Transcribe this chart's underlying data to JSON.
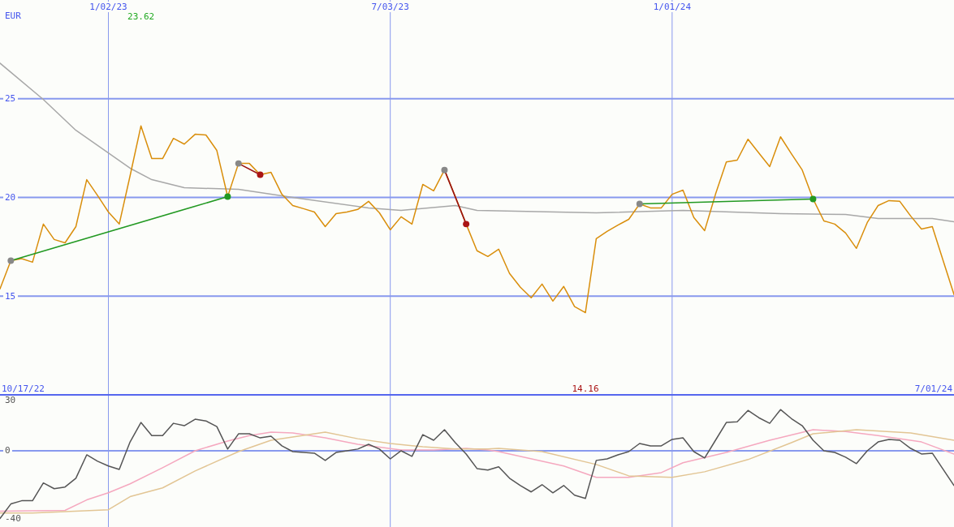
{
  "chart_data": [
    {
      "type": "line",
      "ylabel": "EUR",
      "xlim": [
        "2022-10-24",
        "2024-07-01"
      ],
      "xticks": [
        {
          "value": "2023-01-02",
          "label": "1/02/23"
        },
        {
          "value": "2023-07-03",
          "label": "7/03/23"
        },
        {
          "value": "2024-01-01",
          "label": "1/01/24"
        }
      ],
      "ylim": [
        10,
        30
      ],
      "yticks": [
        15,
        20,
        25
      ],
      "grid": true,
      "x": [
        "2022-10-24",
        "2022-10-31",
        "2022-11-07",
        "2022-11-14",
        "2022-11-21",
        "2022-11-28",
        "2022-12-05",
        "2022-12-12",
        "2022-12-19",
        "2022-12-26",
        "2023-01-02",
        "2023-01-09",
        "2023-01-16",
        "2023-01-23",
        "2023-01-30",
        "2023-02-06",
        "2023-02-13",
        "2023-02-20",
        "2023-02-27",
        "2023-03-06",
        "2023-03-13",
        "2023-03-20",
        "2023-03-27",
        "2023-04-03",
        "2023-04-10",
        "2023-04-17",
        "2023-04-24",
        "2023-05-01",
        "2023-05-08",
        "2023-05-15",
        "2023-05-22",
        "2023-05-29",
        "2023-06-05",
        "2023-06-12",
        "2023-06-19",
        "2023-06-26",
        "2023-07-03",
        "2023-07-10",
        "2023-07-17",
        "2023-07-24",
        "2023-07-31",
        "2023-08-07",
        "2023-08-14",
        "2023-08-21",
        "2023-08-28",
        "2023-09-04",
        "2023-09-11",
        "2023-09-18",
        "2023-09-25",
        "2023-10-02",
        "2023-10-09",
        "2023-10-16",
        "2023-10-23",
        "2023-10-30",
        "2023-11-06",
        "2023-11-13",
        "2023-11-20",
        "2023-11-27",
        "2023-12-04",
        "2023-12-11",
        "2023-12-18",
        "2023-12-25",
        "2024-01-01",
        "2024-01-08",
        "2024-01-15",
        "2024-01-22",
        "2024-01-29",
        "2024-02-05",
        "2024-02-12",
        "2024-02-19",
        "2024-02-26",
        "2024-03-04",
        "2024-03-11",
        "2024-03-18",
        "2024-03-25",
        "2024-04-01",
        "2024-04-08",
        "2024-04-15",
        "2024-04-22",
        "2024-04-29",
        "2024-05-06",
        "2024-05-13",
        "2024-05-20",
        "2024-05-27",
        "2024-06-03",
        "2024-06-10",
        "2024-06-17",
        "2024-06-24",
        "2024-07-01"
      ],
      "series": [
        {
          "color": "#a8a8a8",
          "x": [
            "2022-10-24",
            "2022-11-21",
            "2022-12-12",
            "2023-01-16",
            "2023-01-30",
            "2023-02-20",
            "2023-03-27",
            "2023-05-01",
            "2023-06-19",
            "2023-07-10",
            "2023-08-14",
            "2023-08-28",
            "2023-11-13",
            "2024-01-08",
            "2024-03-11",
            "2024-04-22",
            "2024-05-13",
            "2024-06-17",
            "2024-07-01"
          ],
          "values": [
            26.8,
            24.96,
            23.4,
            21.48,
            20.9,
            20.49,
            20.41,
            20.0,
            19.47,
            19.34,
            19.59,
            19.34,
            19.22,
            19.34,
            19.18,
            19.14,
            18.93,
            18.93,
            18.77
          ]
        },
        {
          "color": "#d98e0b",
          "values": [
            15.37,
            16.8,
            16.9,
            16.72,
            18.65,
            17.87,
            17.7,
            18.52,
            20.9,
            20.1,
            19.26,
            18.65,
            21.1,
            23.62,
            21.97,
            21.97,
            22.99,
            22.7,
            23.2,
            23.16,
            22.38,
            20.04,
            21.72,
            21.72,
            21.15,
            21.27,
            20.16,
            19.59,
            19.43,
            19.26,
            18.52,
            19.18,
            19.26,
            19.39,
            19.8,
            19.22,
            18.36,
            19.02,
            18.65,
            20.66,
            20.33,
            21.39,
            20.04,
            18.65,
            17.3,
            17.01,
            17.38,
            16.15,
            15.45,
            14.92,
            15.61,
            14.75,
            15.49,
            14.47,
            14.16,
            17.91,
            18.28,
            18.6,
            18.89,
            19.67,
            19.47,
            19.47,
            20.16,
            20.37,
            18.98,
            18.32,
            20.16,
            21.8,
            21.89,
            22.95,
            22.25,
            21.56,
            23.07,
            22.21,
            21.39,
            19.92,
            18.81,
            18.65,
            18.2,
            17.42,
            18.73,
            19.59,
            19.84,
            19.8,
            19.06,
            18.4,
            18.52,
            16.8,
            15.08
          ]
        },
        {
          "color": "#229922",
          "x": [
            "2022-10-31",
            "2023-03-20"
          ],
          "values": [
            16.8,
            20.04
          ]
        },
        {
          "color": "#991111",
          "x": [
            "2023-03-27",
            "2023-04-10"
          ],
          "values": [
            21.72,
            21.15
          ]
        },
        {
          "color": "#991111",
          "x": [
            "2023-08-07",
            "2023-08-21"
          ],
          "values": [
            21.39,
            18.65
          ]
        },
        {
          "color": "#229922",
          "x": [
            "2023-12-11",
            "2024-04-01"
          ],
          "values": [
            19.67,
            19.92
          ]
        },
        {
          "type": "scatter",
          "marker": "circle",
          "color": "#888888",
          "x": [
            "2022-10-31",
            "2023-03-27",
            "2023-08-07",
            "2023-12-11"
          ],
          "values": [
            16.8,
            21.72,
            21.39,
            19.67
          ]
        },
        {
          "type": "scatter",
          "marker": "circle",
          "colors": [
            "#229922",
            "#aa1515",
            "#aa1515",
            "#229922"
          ],
          "x": [
            "2023-03-20",
            "2023-04-10",
            "2023-08-21",
            "2024-04-01"
          ],
          "values": [
            20.04,
            21.15,
            18.65,
            19.92
          ]
        }
      ],
      "annotations": [
        "23.62",
        "14.16",
        "10/17/22",
        "7/01/24"
      ]
    },
    {
      "type": "line",
      "tick_labels": "y",
      "xlim": [
        "2022-10-24",
        "2024-07-01"
      ],
      "xticks": [
        {
          "value": "2023-01-02",
          "label": null
        },
        {
          "value": "2023-07-03",
          "label": null
        },
        {
          "value": "2024-01-01",
          "label": null
        }
      ],
      "ylim": [
        -45,
        33
      ],
      "yticks": [
        -40,
        0,
        30
      ],
      "grid": "x",
      "ref_lines": [
        {
          "axis": "y",
          "value": 0,
          "color": "#8899ee"
        }
      ],
      "x": [
        "2022-10-24",
        "2022-10-31",
        "2022-11-07",
        "2022-11-14",
        "2022-11-21",
        "2022-11-28",
        "2022-12-05",
        "2022-12-12",
        "2022-12-19",
        "2022-12-26",
        "2023-01-02",
        "2023-01-09",
        "2023-01-16",
        "2023-01-23",
        "2023-01-30",
        "2023-02-06",
        "2023-02-13",
        "2023-02-20",
        "2023-02-27",
        "2023-03-06",
        "2023-03-13",
        "2023-03-20",
        "2023-03-27",
        "2023-04-03",
        "2023-04-10",
        "2023-04-17",
        "2023-04-24",
        "2023-05-01",
        "2023-05-08",
        "2023-05-15",
        "2023-05-22",
        "2023-05-29",
        "2023-06-05",
        "2023-06-12",
        "2023-06-19",
        "2023-06-26",
        "2023-07-03",
        "2023-07-10",
        "2023-07-17",
        "2023-07-24",
        "2023-07-31",
        "2023-08-07",
        "2023-08-14",
        "2023-08-21",
        "2023-08-28",
        "2023-09-04",
        "2023-09-11",
        "2023-09-18",
        "2023-09-25",
        "2023-10-02",
        "2023-10-09",
        "2023-10-16",
        "2023-10-23",
        "2023-10-30",
        "2023-11-06",
        "2023-11-13",
        "2023-11-20",
        "2023-11-27",
        "2023-12-04",
        "2023-12-11",
        "2023-12-18",
        "2023-12-25",
        "2024-01-01",
        "2024-01-08",
        "2024-01-15",
        "2024-01-22",
        "2024-01-29",
        "2024-02-05",
        "2024-02-12",
        "2024-02-19",
        "2024-02-26",
        "2024-03-04",
        "2024-03-11",
        "2024-03-18",
        "2024-03-25",
        "2024-04-01",
        "2024-04-08",
        "2024-04-15",
        "2024-04-22",
        "2024-04-29",
        "2024-05-06",
        "2024-05-13",
        "2024-05-20",
        "2024-05-27",
        "2024-06-03",
        "2024-06-10",
        "2024-06-17",
        "2024-06-24",
        "2024-07-01"
      ],
      "series": [
        {
          "color": "#f5a8bf",
          "x": [
            "2022-10-24",
            "2022-12-05",
            "2022-12-19",
            "2023-01-02",
            "2023-01-16",
            "2023-02-06",
            "2023-02-27",
            "2023-03-20",
            "2023-04-03",
            "2023-04-17",
            "2023-05-01",
            "2023-05-22",
            "2023-06-12",
            "2023-07-10",
            "2023-07-31",
            "2023-08-21",
            "2023-09-04",
            "2023-09-11",
            "2023-10-23",
            "2023-11-13",
            "2023-12-04",
            "2023-12-25",
            "2024-01-08",
            "2024-02-05",
            "2024-03-04",
            "2024-04-01",
            "2024-04-22",
            "2024-05-13",
            "2024-06-10",
            "2024-07-01"
          ],
          "values": [
            -35.7,
            -35.2,
            -29,
            -24.8,
            -19.5,
            -10,
            0,
            5.7,
            9,
            11,
            10.5,
            7.6,
            3.8,
            0.5,
            0.5,
            1.4,
            0.5,
            -0.5,
            -9,
            -15.7,
            -15.7,
            -12.9,
            -7.1,
            -1,
            6.2,
            12.4,
            11.4,
            9,
            5.2,
            -1.9
          ]
        },
        {
          "color": "#e2c594",
          "x": [
            "2022-10-24",
            "2022-11-14",
            "2023-01-02",
            "2023-01-16",
            "2023-02-06",
            "2023-02-27",
            "2023-03-27",
            "2023-04-17",
            "2023-05-22",
            "2023-06-12",
            "2023-07-03",
            "2023-07-24",
            "2023-08-14",
            "2023-09-04",
            "2023-09-11",
            "2023-10-09",
            "2023-11-13",
            "2023-12-04",
            "2024-01-01",
            "2024-01-22",
            "2024-02-19",
            "2024-03-18",
            "2024-04-01",
            "2024-04-29",
            "2024-06-03",
            "2024-07-01"
          ],
          "values": [
            -36.7,
            -36.7,
            -34.8,
            -27.1,
            -21.9,
            -11.9,
            -0.5,
            6.2,
            11,
            7.1,
            4.3,
            2.4,
            1,
            1,
            1.4,
            -0.5,
            -8.1,
            -14.8,
            -15.7,
            -12.4,
            -5.2,
            4.8,
            10,
            12.4,
            10.5,
            6.2
          ]
        },
        {
          "color": "#555555",
          "values": [
            -40,
            -31.4,
            -29.5,
            -29.5,
            -19,
            -22.4,
            -21.4,
            -16.2,
            -2.4,
            -6.2,
            -9,
            -11,
            5.2,
            16.7,
            9,
            9,
            16.2,
            14.8,
            18.6,
            17.6,
            14.3,
            1,
            10,
            10,
            7.6,
            8.6,
            2.9,
            -0.5,
            -1,
            -1.4,
            -5.7,
            -1,
            0,
            1,
            3.8,
            1,
            -4.8,
            0,
            -3.3,
            9.5,
            6.2,
            12.4,
            4.8,
            -1.9,
            -10.5,
            -11.4,
            -9.5,
            -16.2,
            -20.5,
            -24.3,
            -20,
            -24.8,
            -20.5,
            -26.2,
            -28.1,
            -5.7,
            -4.8,
            -2.4,
            -0.5,
            4.3,
            2.9,
            2.9,
            6.7,
            7.6,
            -0.5,
            -4.3,
            6.2,
            16.7,
            17.1,
            23.8,
            19.5,
            16.2,
            24.3,
            19,
            14.8,
            6.2,
            0,
            -1,
            -3.8,
            -7.6,
            0,
            5.2,
            6.7,
            6.2,
            1.4,
            -1.9,
            -1.4,
            -11,
            -20.5
          ]
        }
      ]
    }
  ]
}
